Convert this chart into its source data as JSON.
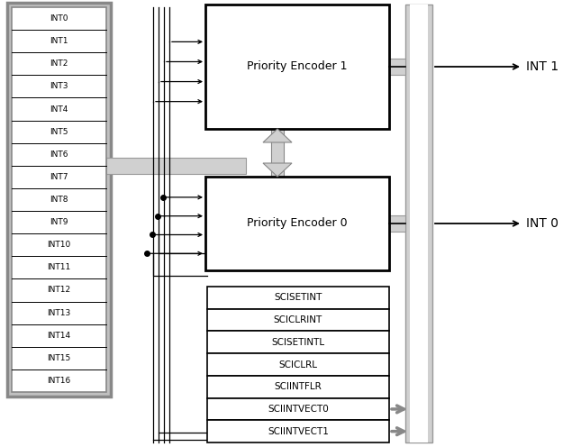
{
  "int_labels": [
    "INT0",
    "INT1",
    "INT2",
    "INT3",
    "INT4",
    "INT5",
    "INT6",
    "INT7",
    "INT8",
    "INT9",
    "INT10",
    "INT11",
    "INT12",
    "INT13",
    "INT14",
    "INT15",
    "INT16"
  ],
  "sci_labels": [
    "SCISETINT",
    "SCICLRINT",
    "SCISETINTL",
    "SCICLRL",
    "SCIINTFLR",
    "SCIINTVECT0",
    "SCIINTVECT1"
  ],
  "pe1_label": "Priority Encoder 1",
  "pe0_label": "Priority Encoder 0",
  "out1_label": "INT 1",
  "out0_label": "INT 0",
  "bg_color": "#ffffff",
  "gray_light": "#d0d0d0",
  "gray_mid": "#b0b0b0",
  "wire_color": "#000000"
}
